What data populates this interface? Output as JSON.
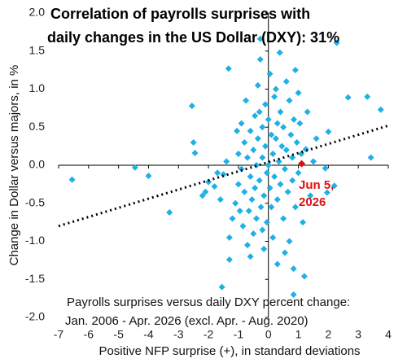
{
  "chart_data": {
    "type": "scatter",
    "title": [
      "Correlation of payrolls surprises with",
      "daily changes in the US Dollar (DXY): 31%"
    ],
    "annotation": [
      "Payrolls surprises versus daily DXY percent change:",
      "Jan. 2006 - Apr. 2026 (excl. Apr. - Aug. 2020)"
    ],
    "x_label": "Positive NFP surprise (+), in standard deviations",
    "y_label": "Change in Dollar versus majors, in %",
    "color": "#1fb0e6",
    "x": [
      -6.55,
      -4.45,
      -4.0,
      -3.3,
      -2.55,
      -2.5,
      -2.45,
      -2.0,
      -2.1,
      -1.8,
      -1.6,
      -1.5,
      -1.4,
      -1.33,
      -1.3,
      -1.55,
      -1.3,
      -1.2,
      -1.1,
      -1.0,
      -1.0,
      -0.9,
      -0.9,
      -0.85,
      -0.8,
      -0.8,
      -0.75,
      -0.7,
      -0.7,
      -0.65,
      -0.6,
      -0.6,
      -0.55,
      -0.5,
      -0.5,
      -0.45,
      -0.45,
      -0.4,
      -0.4,
      -0.35,
      -0.35,
      -0.3,
      -0.27,
      -0.27,
      -0.25,
      -0.2,
      -0.2,
      -0.15,
      -0.15,
      -0.1,
      -0.1,
      -0.05,
      -0.05,
      0.0,
      0.0,
      0.05,
      0.05,
      0.1,
      0.1,
      0.15,
      0.15,
      0.2,
      0.2,
      0.25,
      0.25,
      0.3,
      0.3,
      0.35,
      0.38,
      0.4,
      0.4,
      0.45,
      0.5,
      0.5,
      0.55,
      0.6,
      0.6,
      0.65,
      0.7,
      0.7,
      0.75,
      0.8,
      0.8,
      0.84,
      0.84,
      0.85,
      0.9,
      0.95,
      1.0,
      1.0,
      1.05,
      1.1,
      1.2,
      1.25,
      1.3,
      1.4,
      1.5,
      1.6,
      1.9,
      1.96,
      2.0,
      2.2,
      2.28,
      2.66,
      3.3,
      3.75,
      3.42,
      -0.95,
      -1.05,
      -0.3,
      0.55,
      -0.6,
      1.15,
      -1.7,
      0.9,
      -0.2,
      0.3,
      -2.2
    ],
    "values": [
      -0.19,
      -0.03,
      -0.14,
      -0.62,
      0.78,
      0.3,
      0.16,
      -0.22,
      -0.35,
      -0.28,
      -0.45,
      -0.12,
      0.05,
      1.27,
      -1.24,
      -1.6,
      -0.95,
      -0.7,
      -0.5,
      0.15,
      -0.25,
      0.55,
      -0.05,
      -0.8,
      0.3,
      -0.35,
      0.85,
      -1.05,
      0.1,
      -0.6,
      0.45,
      -0.15,
      -0.45,
      0.2,
      -0.9,
      0.65,
      -0.3,
      0.0,
      -0.7,
      1.05,
      0.35,
      -0.2,
      1.66,
      1.39,
      -0.55,
      0.5,
      0.1,
      -1.1,
      -0.4,
      0.8,
      0.25,
      -0.1,
      -0.75,
      0.6,
      0.0,
      1.2,
      -0.3,
      0.4,
      -0.55,
      -0.95,
      0.15,
      0.9,
      -0.15,
      1.0,
      0.35,
      -0.45,
      -1.3,
      0.05,
      1.48,
      0.7,
      -0.25,
      0.25,
      -0.7,
      0.5,
      -0.05,
      1.1,
      0.2,
      -0.35,
      0.85,
      -1.0,
      0.4,
      0.1,
      -0.2,
      -1.36,
      -1.7,
      0.6,
      -0.55,
      0.3,
      0.95,
      -0.1,
      0.55,
      0.15,
      -1.46,
      0.21,
      0.7,
      -0.4,
      0.05,
      0.35,
      -0.04,
      -0.36,
      0.44,
      -0.27,
      1.61,
      0.89,
      0.9,
      0.73,
      0.1,
      -0.6,
      0.45,
      0.7,
      -1.15,
      -1.2,
      -0.75,
      -0.1,
      1.25,
      -0.85,
      0.55,
      -0.4
    ],
    "highlight": {
      "x": 1.11,
      "y": 0.02,
      "label": [
        "Jun 5,",
        "2026"
      ],
      "color": "#e01010"
    },
    "trendline": {
      "x": [
        -7,
        4
      ],
      "y": [
        -0.8,
        0.52
      ]
    },
    "xlim": [
      -7,
      4
    ],
    "ylim": [
      -2,
      2
    ],
    "xticks": [
      -7,
      -6,
      -5,
      -4,
      -3,
      -2,
      -1,
      0,
      1,
      2,
      3,
      4
    ],
    "yticks": [
      {
        "value": 2,
        "label": "2.0"
      },
      1.5,
      {
        "value": 1,
        "label": "1.0"
      },
      0.5,
      {
        "value": 0,
        "label": "0.0"
      },
      -0.5,
      {
        "value": -1,
        "label": "-1.0"
      },
      -1.5,
      {
        "value": -2,
        "label": "-2.0"
      }
    ]
  }
}
